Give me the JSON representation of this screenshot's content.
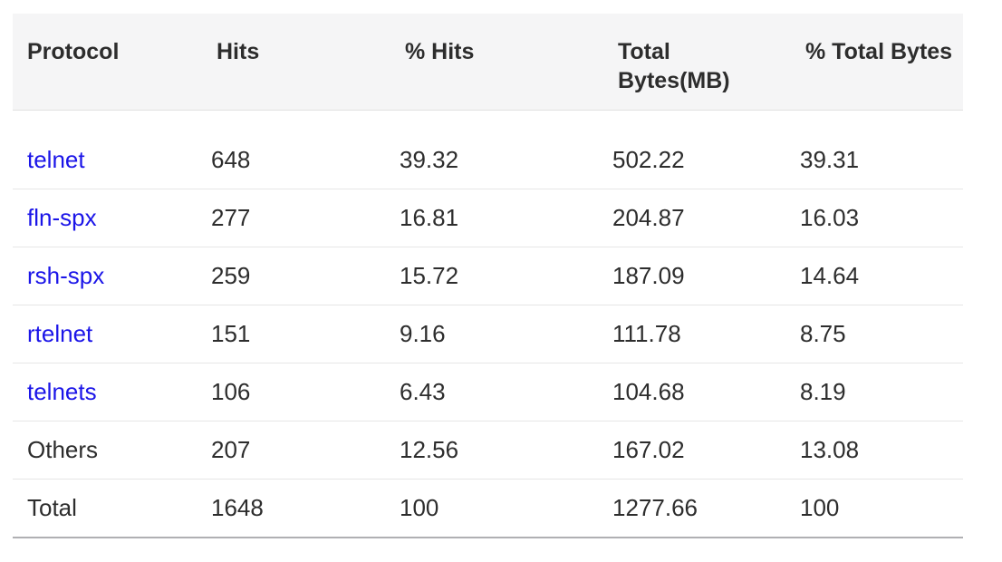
{
  "table": {
    "columns": [
      {
        "key": "protocol",
        "label": "Protocol"
      },
      {
        "key": "hits",
        "label": "Hits"
      },
      {
        "key": "pct_hits",
        "label": "% Hits"
      },
      {
        "key": "total_bytes",
        "label": "Total Bytes(MB)"
      },
      {
        "key": "pct_total_bytes",
        "label": "% Total Bytes"
      }
    ],
    "rows": [
      {
        "protocol": "telnet",
        "is_link": true,
        "hits": "648",
        "pct_hits": "39.32",
        "total_bytes": "502.22",
        "pct_total_bytes": "39.31"
      },
      {
        "protocol": "fln-spx",
        "is_link": true,
        "hits": "277",
        "pct_hits": "16.81",
        "total_bytes": "204.87",
        "pct_total_bytes": "16.03"
      },
      {
        "protocol": "rsh-spx",
        "is_link": true,
        "hits": "259",
        "pct_hits": "15.72",
        "total_bytes": "187.09",
        "pct_total_bytes": "14.64"
      },
      {
        "protocol": "rtelnet",
        "is_link": true,
        "hits": "151",
        "pct_hits": "9.16",
        "total_bytes": "111.78",
        "pct_total_bytes": "8.75"
      },
      {
        "protocol": "telnets",
        "is_link": true,
        "hits": "106",
        "pct_hits": "6.43",
        "total_bytes": "104.68",
        "pct_total_bytes": "8.19"
      },
      {
        "protocol": "Others",
        "is_link": false,
        "hits": "207",
        "pct_hits": "12.56",
        "total_bytes": "167.02",
        "pct_total_bytes": "13.08"
      },
      {
        "protocol": "Total",
        "is_link": false,
        "hits": "1648",
        "pct_hits": "100",
        "total_bytes": "1277.66",
        "pct_total_bytes": "100"
      }
    ]
  },
  "colors": {
    "link": "#1b15e8",
    "text": "#2d2d2d",
    "header_bg": "#f5f5f6",
    "header_border": "#e0e0e0",
    "row_border": "#e6e6e6",
    "strong_border": "#b0b0b3",
    "background": "#ffffff"
  }
}
